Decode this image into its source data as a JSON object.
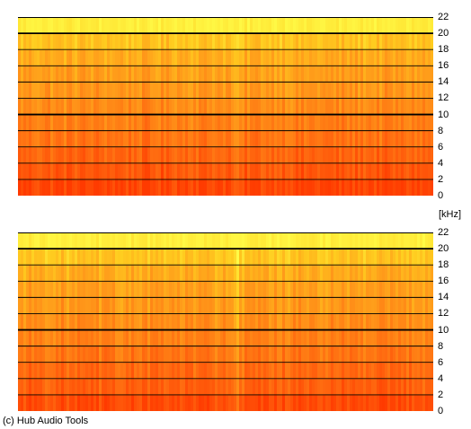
{
  "chart_data": [
    {
      "type": "heatmap",
      "panel": "upper channel spectrogram",
      "y_unit": "kHz",
      "ylim": [
        0,
        22
      ],
      "y_ticks": [
        0,
        2,
        4,
        6,
        8,
        10,
        12,
        14,
        16,
        18,
        20,
        22
      ],
      "grid": true,
      "bold_gridlines": [
        10,
        20
      ],
      "colormap": [
        "#ffff4a",
        "#ffcc1f",
        "#ff9a1a",
        "#ff6a10",
        "#ff3a00"
      ],
      "energy_by_band_low_to_high": [
        0.95,
        0.85,
        0.78,
        0.7,
        0.64,
        0.58,
        0.52,
        0.48,
        0.42,
        0.3,
        0.08
      ]
    },
    {
      "type": "heatmap",
      "panel": "lower channel spectrogram",
      "y_unit": "kHz",
      "ylim": [
        0,
        22
      ],
      "y_ticks": [
        0,
        2,
        4,
        6,
        8,
        10,
        12,
        14,
        16,
        18,
        20,
        22
      ],
      "grid": true,
      "bold_gridlines": [
        10,
        20
      ],
      "colormap": [
        "#ffff4a",
        "#ffcc1f",
        "#ff9a1a",
        "#ff6a10",
        "#ff3a00"
      ],
      "energy_by_band_low_to_high": [
        0.9,
        0.8,
        0.74,
        0.68,
        0.62,
        0.56,
        0.5,
        0.46,
        0.4,
        0.28,
        0.08
      ]
    }
  ],
  "unit_label": "[kHz]",
  "credit": "(c) Hub Audio Tools"
}
